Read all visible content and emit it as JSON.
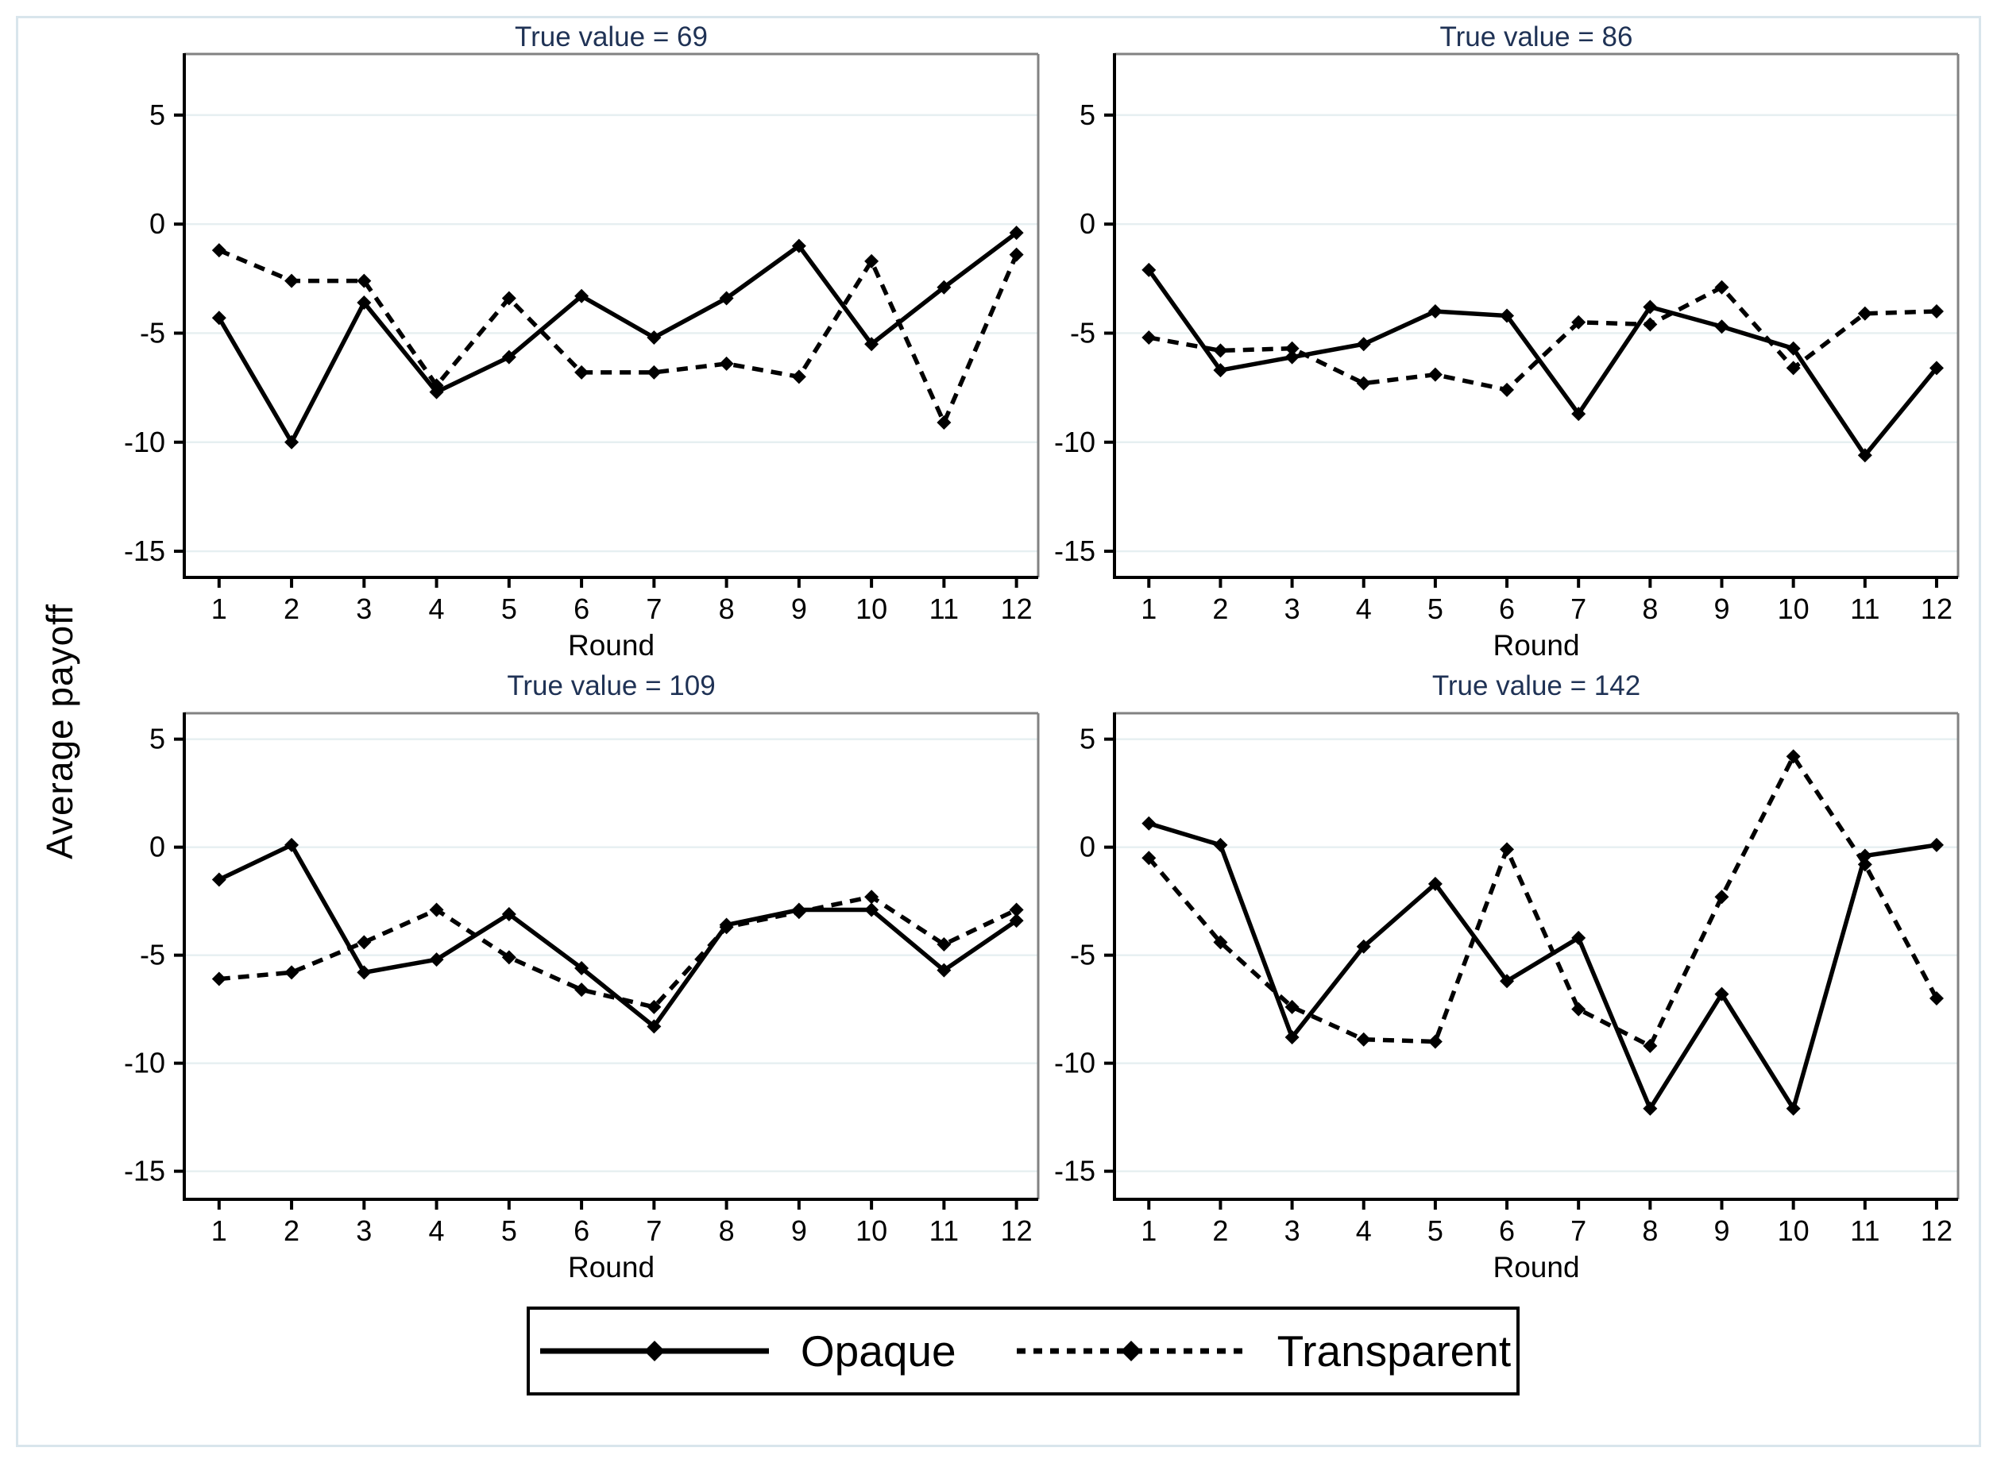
{
  "figure": {
    "ylabel": "Average payoff",
    "xlabel": "Round",
    "colors": {
      "title_navy": "#1f3255",
      "line_black": "#000000",
      "gridline": "#e6eff1",
      "border_gray": "#828282",
      "outer_frame": "#d9e5ec",
      "background": "#ffffff"
    }
  },
  "legend": {
    "items": [
      {
        "label": "Opaque",
        "style": "solid",
        "marker": "diamond"
      },
      {
        "label": "Transparent",
        "style": "dashed",
        "marker": "diamond"
      }
    ]
  },
  "chart_data": [
    {
      "type": "line",
      "title": "True value = 69",
      "xlabel": "Round",
      "ylabel": "Average payoff",
      "x": [
        1,
        2,
        3,
        4,
        5,
        6,
        7,
        8,
        9,
        10,
        11,
        12
      ],
      "yticks": [
        5,
        0,
        -5,
        -10,
        -15
      ],
      "ylim": [
        -16.2,
        7.8
      ],
      "grid": true,
      "legend_position": "bottom",
      "series": [
        {
          "name": "Opaque",
          "style": "solid",
          "marker": "diamond",
          "values": [
            -4.3,
            -10.0,
            -3.6,
            -7.7,
            -6.1,
            -3.3,
            -5.2,
            -3.4,
            -1.0,
            -5.5,
            -2.9,
            -0.4
          ]
        },
        {
          "name": "Transparent",
          "style": "dashed",
          "marker": "diamond",
          "values": [
            -1.2,
            -2.6,
            -2.6,
            -7.4,
            -3.4,
            -6.8,
            -6.8,
            -6.4,
            -7.0,
            -1.7,
            -9.1,
            -1.4
          ]
        }
      ]
    },
    {
      "type": "line",
      "title": "True value = 86",
      "xlabel": "Round",
      "ylabel": "Average payoff",
      "x": [
        1,
        2,
        3,
        4,
        5,
        6,
        7,
        8,
        9,
        10,
        11,
        12
      ],
      "yticks": [
        5,
        0,
        -5,
        -10,
        -15
      ],
      "ylim": [
        -16.2,
        7.8
      ],
      "grid": true,
      "legend_position": "bottom",
      "series": [
        {
          "name": "Opaque",
          "style": "solid",
          "marker": "diamond",
          "values": [
            -2.1,
            -6.7,
            -6.1,
            -5.5,
            -4.0,
            -4.2,
            -8.7,
            -3.8,
            -4.7,
            -5.7,
            -10.6,
            -6.6
          ]
        },
        {
          "name": "Transparent",
          "style": "dashed",
          "marker": "diamond",
          "values": [
            -5.2,
            -5.8,
            -5.7,
            -7.3,
            -6.9,
            -7.6,
            -4.5,
            -4.6,
            -2.9,
            -6.6,
            -4.1,
            -4.0
          ]
        }
      ]
    },
    {
      "type": "line",
      "title": "True value = 109",
      "xlabel": "Round",
      "ylabel": "Average payoff",
      "x": [
        1,
        2,
        3,
        4,
        5,
        6,
        7,
        8,
        9,
        10,
        11,
        12
      ],
      "yticks": [
        5,
        0,
        -5,
        -10,
        -15
      ],
      "ylim": [
        -16.3,
        6.2
      ],
      "grid": true,
      "legend_position": "bottom",
      "series": [
        {
          "name": "Opaque",
          "style": "solid",
          "marker": "diamond",
          "values": [
            -1.5,
            0.1,
            -5.8,
            -5.2,
            -3.1,
            -5.6,
            -8.3,
            -3.6,
            -2.9,
            -2.9,
            -5.7,
            -3.4
          ]
        },
        {
          "name": "Transparent",
          "style": "dashed",
          "marker": "diamond",
          "values": [
            -6.1,
            -5.8,
            -4.4,
            -2.9,
            -5.1,
            -6.6,
            -7.4,
            -3.7,
            -3.0,
            -2.3,
            -4.5,
            -2.9
          ]
        }
      ]
    },
    {
      "type": "line",
      "title": "True value = 142",
      "xlabel": "Round",
      "ylabel": "Average payoff",
      "x": [
        1,
        2,
        3,
        4,
        5,
        6,
        7,
        8,
        9,
        10,
        11,
        12
      ],
      "yticks": [
        5,
        0,
        -5,
        -10,
        -15
      ],
      "ylim": [
        -16.3,
        6.2
      ],
      "grid": true,
      "legend_position": "bottom",
      "series": [
        {
          "name": "Opaque",
          "style": "solid",
          "marker": "diamond",
          "values": [
            1.1,
            0.1,
            -8.8,
            -4.6,
            -1.7,
            -6.2,
            -4.2,
            -12.1,
            -6.8,
            -12.1,
            -0.4,
            0.1
          ]
        },
        {
          "name": "Transparent",
          "style": "dashed",
          "marker": "diamond",
          "values": [
            -0.5,
            -4.4,
            -7.4,
            -8.9,
            -9.0,
            -0.1,
            -7.5,
            -9.2,
            -2.3,
            4.2,
            -0.8,
            -7.0
          ]
        }
      ]
    }
  ]
}
